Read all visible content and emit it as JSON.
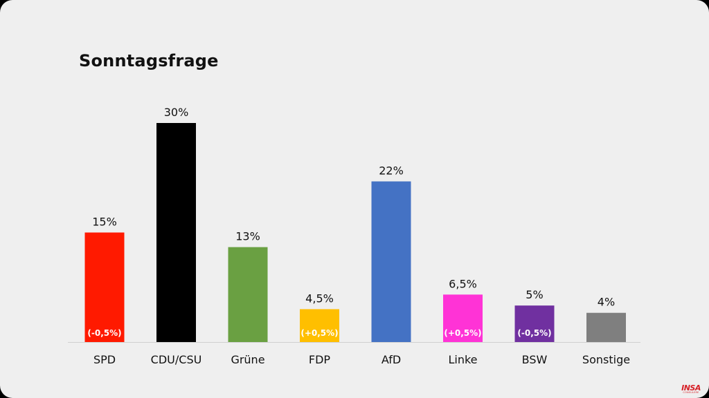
{
  "chart_data": {
    "type": "bar",
    "title": "Sonntagsfrage",
    "categories": [
      "SPD",
      "CDU/CSU",
      "Grüne",
      "FDP",
      "AfD",
      "Linke",
      "BSW",
      "Sonstige"
    ],
    "values": [
      15,
      30,
      13,
      4.5,
      22,
      6.5,
      5,
      4
    ],
    "value_labels": [
      "15%",
      "30%",
      "13%",
      "4,5%",
      "22%",
      "6,5%",
      "5%",
      "4%"
    ],
    "change_labels": [
      "(-0,5%)",
      "",
      "",
      "(+0,5%)",
      "",
      "(+0,5%)",
      "(-0,5%)",
      ""
    ],
    "colors": [
      "#ff1a00",
      "#000000",
      "#6aa042",
      "#ffbf00",
      "#4472c4",
      "#ff33d6",
      "#7030a0",
      "#7f7f7f"
    ],
    "ylim": [
      0,
      30
    ],
    "grid": false,
    "legend": "none"
  },
  "logo": {
    "main": "INSA",
    "sub": "CONSULERE"
  }
}
